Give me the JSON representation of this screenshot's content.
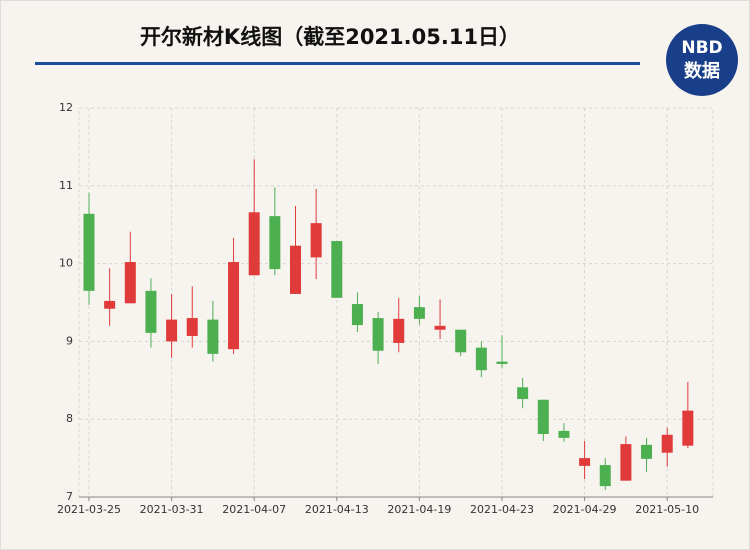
{
  "logo": {
    "line1": "NBD",
    "line2": "数据"
  },
  "chart_data": {
    "type": "candlestick",
    "title": "开尔新材K线图（截至2021.05.11日）",
    "categories": [
      "2021-03-25",
      null,
      null,
      null,
      "2021-03-31",
      null,
      null,
      null,
      "2021-04-07",
      null,
      null,
      null,
      "2021-04-13",
      null,
      null,
      null,
      "2021-04-19",
      null,
      null,
      null,
      "2021-04-23",
      null,
      null,
      null,
      "2021-04-29",
      null,
      null,
      null,
      "2021-05-10",
      null
    ],
    "open": [
      10.64,
      9.42,
      9.49,
      9.65,
      9.0,
      9.07,
      9.28,
      8.9,
      9.85,
      10.61,
      9.61,
      10.08,
      10.29,
      9.48,
      9.3,
      8.98,
      9.44,
      9.15,
      9.15,
      8.92,
      8.74,
      8.41,
      8.25,
      7.85,
      7.4,
      7.41,
      7.21,
      7.67,
      7.57,
      7.66
    ],
    "high": [
      10.91,
      9.94,
      10.41,
      9.81,
      9.61,
      9.71,
      9.52,
      10.33,
      11.34,
      10.98,
      10.74,
      10.96,
      10.29,
      9.63,
      9.38,
      9.56,
      9.58,
      9.54,
      9.15,
      9.0,
      9.08,
      8.53,
      8.25,
      7.95,
      7.72,
      7.5,
      7.78,
      7.76,
      7.89,
      8.48
    ],
    "low": [
      9.47,
      9.2,
      9.49,
      8.92,
      8.79,
      8.92,
      8.74,
      8.84,
      9.85,
      9.85,
      9.61,
      9.8,
      9.56,
      9.12,
      8.71,
      8.86,
      9.22,
      9.03,
      8.81,
      8.54,
      8.66,
      8.14,
      7.72,
      7.71,
      7.23,
      7.09,
      7.21,
      7.32,
      7.39,
      7.63
    ],
    "close": [
      9.65,
      9.52,
      10.02,
      9.11,
      9.28,
      9.3,
      8.84,
      10.02,
      10.66,
      9.93,
      10.23,
      10.52,
      9.56,
      9.21,
      8.88,
      9.29,
      9.29,
      9.2,
      8.86,
      8.63,
      8.71,
      8.26,
      7.81,
      7.76,
      7.5,
      7.14,
      7.68,
      7.49,
      7.8,
      8.11
    ],
    "up_color": "#e03a3a",
    "down_color": "#4caf50",
    "ylim": [
      7,
      12
    ],
    "yticks": [
      7,
      8,
      9,
      10,
      11,
      12
    ],
    "grid": true
  }
}
